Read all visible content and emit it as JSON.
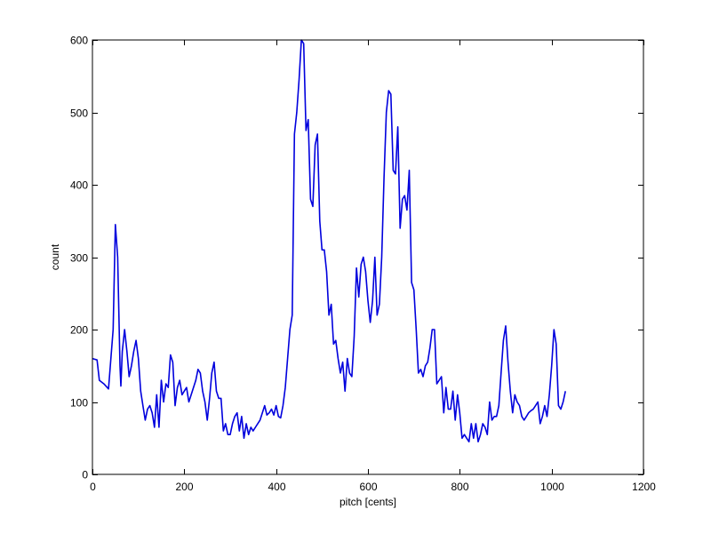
{
  "chart_data": {
    "type": "line",
    "title": "",
    "xlabel": "pitch [cents]",
    "ylabel": "count",
    "xlim": [
      0,
      1200
    ],
    "ylim": [
      0,
      600
    ],
    "x_ticks": [
      0,
      200,
      400,
      600,
      800,
      1000,
      1200
    ],
    "y_ticks": [
      0,
      100,
      200,
      300,
      400,
      500,
      600
    ],
    "x_tick_labels": [
      "0",
      "200",
      "400",
      "600",
      "800",
      "1000",
      "1200"
    ],
    "y_tick_labels": [
      "0",
      "100",
      "200",
      "300",
      "400",
      "500",
      "600"
    ],
    "grid": false,
    "legend": "none",
    "line_color": "#0000dd",
    "series": [
      {
        "points": [
          [
            0,
            160
          ],
          [
            10,
            158
          ],
          [
            15,
            130
          ],
          [
            25,
            125
          ],
          [
            35,
            118
          ],
          [
            45,
            200
          ],
          [
            50,
            345
          ],
          [
            55,
            300
          ],
          [
            60,
            150
          ],
          [
            62,
            122
          ],
          [
            65,
            170
          ],
          [
            70,
            200
          ],
          [
            75,
            170
          ],
          [
            80,
            135
          ],
          [
            85,
            150
          ],
          [
            90,
            170
          ],
          [
            95,
            185
          ],
          [
            100,
            160
          ],
          [
            105,
            115
          ],
          [
            110,
            95
          ],
          [
            115,
            75
          ],
          [
            120,
            90
          ],
          [
            125,
            95
          ],
          [
            130,
            85
          ],
          [
            135,
            65
          ],
          [
            140,
            110
          ],
          [
            145,
            65
          ],
          [
            150,
            130
          ],
          [
            155,
            100
          ],
          [
            160,
            125
          ],
          [
            165,
            120
          ],
          [
            170,
            165
          ],
          [
            175,
            155
          ],
          [
            180,
            95
          ],
          [
            185,
            120
          ],
          [
            190,
            130
          ],
          [
            195,
            110
          ],
          [
            200,
            115
          ],
          [
            205,
            120
          ],
          [
            210,
            100
          ],
          [
            215,
            110
          ],
          [
            220,
            120
          ],
          [
            225,
            130
          ],
          [
            230,
            145
          ],
          [
            235,
            140
          ],
          [
            240,
            115
          ],
          [
            245,
            100
          ],
          [
            250,
            75
          ],
          [
            255,
            105
          ],
          [
            260,
            140
          ],
          [
            265,
            155
          ],
          [
            270,
            115
          ],
          [
            275,
            105
          ],
          [
            280,
            105
          ],
          [
            285,
            60
          ],
          [
            290,
            70
          ],
          [
            295,
            55
          ],
          [
            300,
            55
          ],
          [
            305,
            70
          ],
          [
            310,
            80
          ],
          [
            315,
            85
          ],
          [
            320,
            60
          ],
          [
            325,
            80
          ],
          [
            330,
            50
          ],
          [
            335,
            70
          ],
          [
            340,
            55
          ],
          [
            345,
            65
          ],
          [
            350,
            60
          ],
          [
            355,
            65
          ],
          [
            360,
            70
          ],
          [
            365,
            75
          ],
          [
            370,
            85
          ],
          [
            375,
            95
          ],
          [
            380,
            82
          ],
          [
            385,
            85
          ],
          [
            390,
            90
          ],
          [
            395,
            82
          ],
          [
            400,
            95
          ],
          [
            405,
            80
          ],
          [
            410,
            78
          ],
          [
            415,
            95
          ],
          [
            420,
            120
          ],
          [
            425,
            160
          ],
          [
            430,
            200
          ],
          [
            435,
            220
          ],
          [
            440,
            470
          ],
          [
            445,
            500
          ],
          [
            450,
            545
          ],
          [
            455,
            600
          ],
          [
            460,
            595
          ],
          [
            465,
            475
          ],
          [
            470,
            490
          ],
          [
            475,
            380
          ],
          [
            480,
            370
          ],
          [
            485,
            455
          ],
          [
            490,
            470
          ],
          [
            495,
            350
          ],
          [
            500,
            310
          ],
          [
            505,
            310
          ],
          [
            510,
            280
          ],
          [
            515,
            220
          ],
          [
            520,
            235
          ],
          [
            525,
            180
          ],
          [
            530,
            185
          ],
          [
            535,
            160
          ],
          [
            540,
            140
          ],
          [
            545,
            155
          ],
          [
            550,
            115
          ],
          [
            555,
            160
          ],
          [
            560,
            140
          ],
          [
            565,
            135
          ],
          [
            570,
            190
          ],
          [
            575,
            285
          ],
          [
            580,
            245
          ],
          [
            585,
            290
          ],
          [
            590,
            300
          ],
          [
            595,
            280
          ],
          [
            600,
            240
          ],
          [
            605,
            210
          ],
          [
            610,
            240
          ],
          [
            615,
            300
          ],
          [
            620,
            220
          ],
          [
            625,
            235
          ],
          [
            630,
            300
          ],
          [
            635,
            410
          ],
          [
            640,
            500
          ],
          [
            645,
            530
          ],
          [
            650,
            525
          ],
          [
            655,
            420
          ],
          [
            660,
            415
          ],
          [
            665,
            480
          ],
          [
            670,
            340
          ],
          [
            675,
            380
          ],
          [
            680,
            385
          ],
          [
            685,
            365
          ],
          [
            690,
            420
          ],
          [
            695,
            265
          ],
          [
            700,
            255
          ],
          [
            705,
            200
          ],
          [
            710,
            140
          ],
          [
            715,
            145
          ],
          [
            720,
            135
          ],
          [
            725,
            150
          ],
          [
            730,
            155
          ],
          [
            735,
            175
          ],
          [
            740,
            200
          ],
          [
            745,
            200
          ],
          [
            750,
            125
          ],
          [
            755,
            130
          ],
          [
            760,
            135
          ],
          [
            765,
            85
          ],
          [
            770,
            120
          ],
          [
            775,
            90
          ],
          [
            780,
            90
          ],
          [
            785,
            115
          ],
          [
            790,
            75
          ],
          [
            795,
            110
          ],
          [
            800,
            85
          ],
          [
            805,
            50
          ],
          [
            810,
            55
          ],
          [
            815,
            50
          ],
          [
            820,
            45
          ],
          [
            825,
            70
          ],
          [
            830,
            50
          ],
          [
            835,
            70
          ],
          [
            840,
            45
          ],
          [
            845,
            55
          ],
          [
            850,
            70
          ],
          [
            855,
            65
          ],
          [
            860,
            55
          ],
          [
            865,
            100
          ],
          [
            870,
            75
          ],
          [
            875,
            80
          ],
          [
            880,
            80
          ],
          [
            885,
            95
          ],
          [
            890,
            140
          ],
          [
            895,
            185
          ],
          [
            900,
            205
          ],
          [
            905,
            155
          ],
          [
            910,
            115
          ],
          [
            915,
            85
          ],
          [
            920,
            110
          ],
          [
            925,
            100
          ],
          [
            930,
            95
          ],
          [
            935,
            80
          ],
          [
            940,
            75
          ],
          [
            945,
            80
          ],
          [
            950,
            85
          ],
          [
            955,
            88
          ],
          [
            960,
            90
          ],
          [
            965,
            95
          ],
          [
            970,
            100
          ],
          [
            975,
            70
          ],
          [
            980,
            80
          ],
          [
            985,
            95
          ],
          [
            990,
            80
          ],
          [
            995,
            110
          ],
          [
            1000,
            150
          ],
          [
            1005,
            200
          ],
          [
            1010,
            180
          ],
          [
            1015,
            95
          ],
          [
            1020,
            90
          ],
          [
            1025,
            100
          ],
          [
            1030,
            115
          ]
        ]
      }
    ]
  }
}
